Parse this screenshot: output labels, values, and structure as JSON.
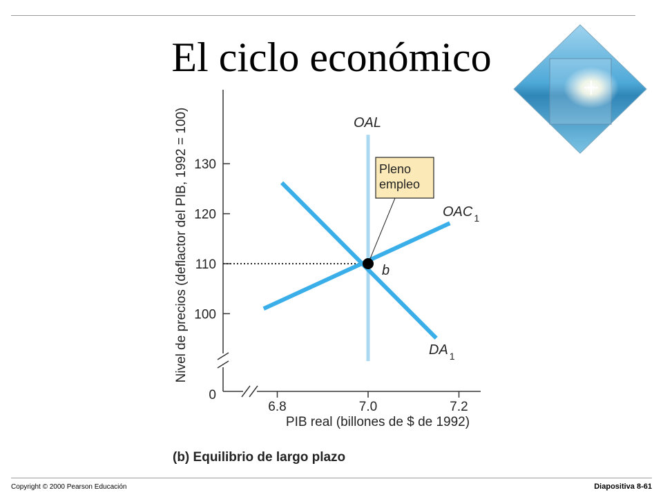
{
  "slide": {
    "title": "El ciclo económico",
    "footer_left": "Copyright © 2000 Pearson Educación",
    "footer_right": "Diapositiva   8-61",
    "logo_icon": "ocean-sunburst-diamond-logo"
  },
  "chart_data": {
    "type": "line",
    "caption": "(b) Equilibrio de largo plazo",
    "xlabel": "PIB real (billones de $ de 1992)",
    "ylabel": "Nivel de precios (deflactor del PIB, 1992 = 100)",
    "xlim": [
      6.8,
      7.2
    ],
    "ylim": [
      100,
      130
    ],
    "x_ticks": [
      "6.8",
      "7.0",
      "7.2"
    ],
    "y_ticks": [
      "0",
      "100",
      "110",
      "120",
      "130"
    ],
    "grid": false,
    "axis_breaks": true,
    "series": [
      {
        "name": "OAL",
        "label_main": "OAL",
        "label_sub": "",
        "color": "#aad8f0",
        "points": [
          [
            7.0,
            90.5
          ],
          [
            7.0,
            135.8
          ]
        ]
      },
      {
        "name": "OAC1",
        "label_main": "OAC",
        "label_sub": "1",
        "color": "#3aaee8",
        "points": [
          [
            6.77,
            101.0
          ],
          [
            7.18,
            118.1
          ]
        ]
      },
      {
        "name": "DA1",
        "label_main": "DA",
        "label_sub": "1",
        "color": "#3aaee8",
        "points": [
          [
            6.81,
            126.2
          ],
          [
            7.15,
            95.1
          ]
        ]
      }
    ],
    "equilibrium": {
      "x": 7.0,
      "y": 110,
      "label": "b"
    },
    "reference_line": {
      "y": 110,
      "style": "dotted"
    },
    "annotation": {
      "lines": [
        "Pleno",
        "empleo"
      ],
      "color": "#fce9b8"
    }
  }
}
